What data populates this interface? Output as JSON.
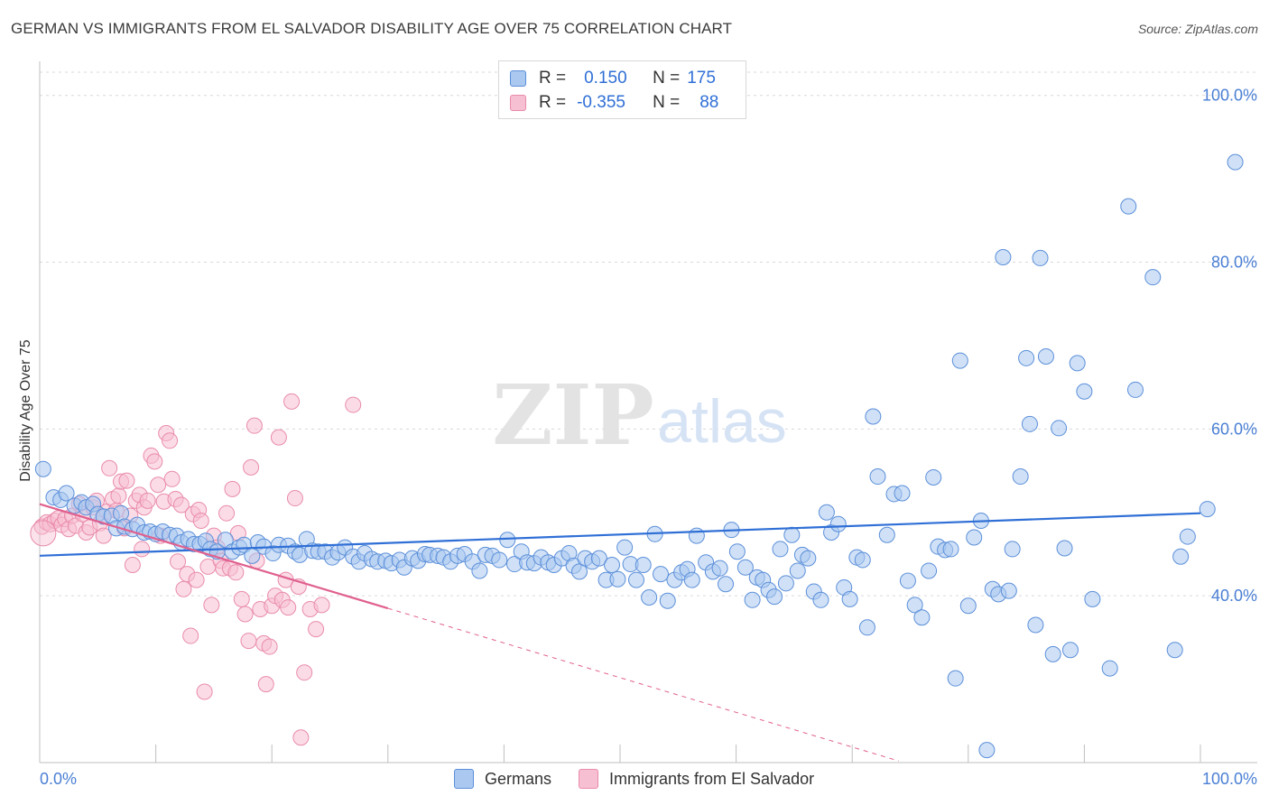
{
  "title": "GERMAN VS IMMIGRANTS FROM EL SALVADOR DISABILITY AGE OVER 75 CORRELATION CHART",
  "source": "Source: ZipAtlas.com",
  "watermark": {
    "zip": "ZIP",
    "atlas": "atlas"
  },
  "legend": {
    "rows": [
      {
        "r_label": "R =",
        "r_value": "0.150",
        "n_label": "N =",
        "n_value": "175"
      },
      {
        "r_label": "R =",
        "r_value": "-0.355",
        "n_label": "N =",
        "n_value": "88"
      }
    ]
  },
  "bottom_legend": {
    "germans": "Germans",
    "salvador": "Immigrants from El Salvador"
  },
  "colors": {
    "blue_fill": "#aac8f0",
    "blue_stroke": "#5b8fd9",
    "blue_line": "#2f6fd6",
    "pink_fill": "#f7bfd2",
    "pink_stroke": "#e98bab",
    "pink_line": "#e0608e",
    "grid": "#d9d9d9",
    "axis": "#bfbfbf"
  },
  "chart_data": {
    "type": "scatter",
    "title": "GERMAN VS IMMIGRANTS FROM EL SALVADOR DISABILITY AGE OVER 75 CORRELATION CHART",
    "xlabel": "",
    "ylabel": "Disability Age Over 75",
    "xlim": [
      0,
      100
    ],
    "ylim": [
      20,
      103
    ],
    "x_tick_labels": [
      "0.0%",
      "100.0%"
    ],
    "y_ticks": [
      {
        "value": 40,
        "label": "40.0%"
      },
      {
        "value": 60,
        "label": "60.0%"
      },
      {
        "value": 80,
        "label": "80.0%"
      },
      {
        "value": 100,
        "label": "100.0%"
      }
    ],
    "grid": true,
    "legend_position": "top-center",
    "series": [
      {
        "name": "Germans",
        "r": 0.15,
        "n": 175,
        "trend": {
          "x": [
            0,
            100
          ],
          "y": [
            44.8,
            49.9
          ]
        },
        "points": [
          [
            0.3,
            55.2
          ],
          [
            1.2,
            51.8
          ],
          [
            1.8,
            51.5
          ],
          [
            2.3,
            52.3
          ],
          [
            3.0,
            50.8
          ],
          [
            3.6,
            51.2
          ],
          [
            4.0,
            50.6
          ],
          [
            4.6,
            51.0
          ],
          [
            5.0,
            49.8
          ],
          [
            5.5,
            49.5
          ],
          [
            6.2,
            49.6
          ],
          [
            6.6,
            48.1
          ],
          [
            7.0,
            49.9
          ],
          [
            7.3,
            48.3
          ],
          [
            8.0,
            48.0
          ],
          [
            8.4,
            48.5
          ],
          [
            9.0,
            47.6
          ],
          [
            9.5,
            47.7
          ],
          [
            10.0,
            47.4
          ],
          [
            10.6,
            47.7
          ],
          [
            11.2,
            47.3
          ],
          [
            11.8,
            47.2
          ],
          [
            12.2,
            46.4
          ],
          [
            12.8,
            46.8
          ],
          [
            13.3,
            46.2
          ],
          [
            13.8,
            46.2
          ],
          [
            14.3,
            46.6
          ],
          [
            14.7,
            45.6
          ],
          [
            15.3,
            45.3
          ],
          [
            16.0,
            46.7
          ],
          [
            16.6,
            45.3
          ],
          [
            17.2,
            45.8
          ],
          [
            17.6,
            46.1
          ],
          [
            18.3,
            44.8
          ],
          [
            18.8,
            46.4
          ],
          [
            19.3,
            45.9
          ],
          [
            20.1,
            45.1
          ],
          [
            20.6,
            46.1
          ],
          [
            21.4,
            46.0
          ],
          [
            22.0,
            45.3
          ],
          [
            22.4,
            44.9
          ],
          [
            23.0,
            46.8
          ],
          [
            23.5,
            45.4
          ],
          [
            24.0,
            45.3
          ],
          [
            24.6,
            45.3
          ],
          [
            25.2,
            44.6
          ],
          [
            25.7,
            45.2
          ],
          [
            26.3,
            45.8
          ],
          [
            27.0,
            44.7
          ],
          [
            27.5,
            44.1
          ],
          [
            28.0,
            45.1
          ],
          [
            28.6,
            44.4
          ],
          [
            29.1,
            44.1
          ],
          [
            29.8,
            44.2
          ],
          [
            30.3,
            43.9
          ],
          [
            31.0,
            44.3
          ],
          [
            31.4,
            43.4
          ],
          [
            32.1,
            44.5
          ],
          [
            32.6,
            44.2
          ],
          [
            33.2,
            45.0
          ],
          [
            33.6,
            44.9
          ],
          [
            34.3,
            44.8
          ],
          [
            34.8,
            44.6
          ],
          [
            35.4,
            44.1
          ],
          [
            36.0,
            44.8
          ],
          [
            36.6,
            45.0
          ],
          [
            37.3,
            44.1
          ],
          [
            37.9,
            43.0
          ],
          [
            38.4,
            44.9
          ],
          [
            39.0,
            44.8
          ],
          [
            39.6,
            44.3
          ],
          [
            40.3,
            46.7
          ],
          [
            40.9,
            43.8
          ],
          [
            41.5,
            45.3
          ],
          [
            42.0,
            44.0
          ],
          [
            42.6,
            43.9
          ],
          [
            43.2,
            44.6
          ],
          [
            43.8,
            44.0
          ],
          [
            44.3,
            43.7
          ],
          [
            45.0,
            44.5
          ],
          [
            45.6,
            45.1
          ],
          [
            46.0,
            43.6
          ],
          [
            46.5,
            42.9
          ],
          [
            47.0,
            44.5
          ],
          [
            47.6,
            44.1
          ],
          [
            48.2,
            44.5
          ],
          [
            48.8,
            41.9
          ],
          [
            49.3,
            43.7
          ],
          [
            49.8,
            42.0
          ],
          [
            50.4,
            45.8
          ],
          [
            50.9,
            43.8
          ],
          [
            51.4,
            41.9
          ],
          [
            52.0,
            43.7
          ],
          [
            52.5,
            39.8
          ],
          [
            53.0,
            47.4
          ],
          [
            53.5,
            42.6
          ],
          [
            54.1,
            39.4
          ],
          [
            54.7,
            41.9
          ],
          [
            55.3,
            42.8
          ],
          [
            55.8,
            43.2
          ],
          [
            56.2,
            41.9
          ],
          [
            56.6,
            47.2
          ],
          [
            57.4,
            44.0
          ],
          [
            58.0,
            42.9
          ],
          [
            58.6,
            43.3
          ],
          [
            59.1,
            41.4
          ],
          [
            59.6,
            47.9
          ],
          [
            60.1,
            45.3
          ],
          [
            60.8,
            43.4
          ],
          [
            61.4,
            39.5
          ],
          [
            61.8,
            42.2
          ],
          [
            62.3,
            41.9
          ],
          [
            62.8,
            40.7
          ],
          [
            63.3,
            39.9
          ],
          [
            63.8,
            45.6
          ],
          [
            64.3,
            41.5
          ],
          [
            64.8,
            47.3
          ],
          [
            65.3,
            43.0
          ],
          [
            65.7,
            44.9
          ],
          [
            66.2,
            44.5
          ],
          [
            66.7,
            40.5
          ],
          [
            67.3,
            39.5
          ],
          [
            67.8,
            50.0
          ],
          [
            68.2,
            47.6
          ],
          [
            68.8,
            48.6
          ],
          [
            69.3,
            41.0
          ],
          [
            69.8,
            39.6
          ],
          [
            70.4,
            44.6
          ],
          [
            70.9,
            44.3
          ],
          [
            71.3,
            36.2
          ],
          [
            71.8,
            61.5
          ],
          [
            72.2,
            54.3
          ],
          [
            73.0,
            47.3
          ],
          [
            73.6,
            52.2
          ],
          [
            74.3,
            52.3
          ],
          [
            74.8,
            41.8
          ],
          [
            75.4,
            38.9
          ],
          [
            76.0,
            37.4
          ],
          [
            76.6,
            43.0
          ],
          [
            77.0,
            54.2
          ],
          [
            77.4,
            45.9
          ],
          [
            78.0,
            45.5
          ],
          [
            78.5,
            45.6
          ],
          [
            78.9,
            30.1
          ],
          [
            79.3,
            68.2
          ],
          [
            80.0,
            38.8
          ],
          [
            80.5,
            47.0
          ],
          [
            81.1,
            49.0
          ],
          [
            81.6,
            21.5
          ],
          [
            82.1,
            40.8
          ],
          [
            82.6,
            40.2
          ],
          [
            83.0,
            80.6
          ],
          [
            83.5,
            40.6
          ],
          [
            83.8,
            45.6
          ],
          [
            84.5,
            54.3
          ],
          [
            85.0,
            68.5
          ],
          [
            85.3,
            60.6
          ],
          [
            85.8,
            36.5
          ],
          [
            86.2,
            80.5
          ],
          [
            86.7,
            68.7
          ],
          [
            87.3,
            33.0
          ],
          [
            87.8,
            60.1
          ],
          [
            88.3,
            45.7
          ],
          [
            88.8,
            33.5
          ],
          [
            89.4,
            67.9
          ],
          [
            90.0,
            64.5
          ],
          [
            90.7,
            39.6
          ],
          [
            92.2,
            31.3
          ],
          [
            93.8,
            86.7
          ],
          [
            94.4,
            64.7
          ],
          [
            95.9,
            78.2
          ],
          [
            97.8,
            33.5
          ],
          [
            98.3,
            44.7
          ],
          [
            98.9,
            47.1
          ],
          [
            100.6,
            50.4
          ],
          [
            103.0,
            92.0
          ]
        ]
      },
      {
        "name": "Immigrants from El Salvador",
        "r": -0.355,
        "n": 88,
        "trend": {
          "x": [
            0,
            30
          ],
          "y": [
            51.0,
            38.5
          ]
        },
        "trend_dashed": {
          "x": [
            30,
            74
          ],
          "y": [
            38.5,
            20.2
          ]
        },
        "points": [
          [
            0.2,
            48.3
          ],
          [
            0.6,
            48.8
          ],
          [
            0.9,
            48.6
          ],
          [
            1.3,
            49.0
          ],
          [
            1.6,
            49.3
          ],
          [
            1.9,
            48.5
          ],
          [
            2.2,
            49.2
          ],
          [
            2.5,
            48.0
          ],
          [
            2.8,
            49.6
          ],
          [
            3.1,
            48.4
          ],
          [
            3.4,
            51.0
          ],
          [
            3.7,
            49.8
          ],
          [
            4.0,
            47.6
          ],
          [
            4.3,
            48.2
          ],
          [
            4.6,
            50.6
          ],
          [
            4.9,
            51.4
          ],
          [
            5.2,
            48.7
          ],
          [
            5.5,
            47.2
          ],
          [
            5.8,
            50.1
          ],
          [
            6.0,
            55.3
          ],
          [
            6.3,
            51.6
          ],
          [
            6.6,
            50.2
          ],
          [
            6.8,
            52.0
          ],
          [
            7.0,
            53.7
          ],
          [
            7.3,
            48.1
          ],
          [
            7.5,
            53.8
          ],
          [
            7.8,
            49.6
          ],
          [
            8.0,
            43.7
          ],
          [
            8.3,
            51.4
          ],
          [
            8.6,
            52.1
          ],
          [
            8.8,
            45.6
          ],
          [
            9.0,
            50.6
          ],
          [
            9.3,
            51.4
          ],
          [
            9.6,
            56.8
          ],
          [
            9.9,
            56.1
          ],
          [
            10.2,
            53.3
          ],
          [
            10.4,
            47.2
          ],
          [
            10.7,
            51.3
          ],
          [
            10.9,
            59.5
          ],
          [
            11.2,
            58.6
          ],
          [
            11.4,
            54.0
          ],
          [
            11.7,
            51.6
          ],
          [
            11.9,
            44.1
          ],
          [
            12.2,
            50.9
          ],
          [
            12.4,
            40.8
          ],
          [
            12.7,
            42.6
          ],
          [
            13.0,
            35.2
          ],
          [
            13.2,
            49.8
          ],
          [
            13.5,
            41.9
          ],
          [
            13.7,
            50.3
          ],
          [
            13.9,
            49.0
          ],
          [
            14.2,
            28.5
          ],
          [
            14.5,
            43.5
          ],
          [
            14.8,
            38.9
          ],
          [
            15.0,
            47.2
          ],
          [
            15.3,
            45.8
          ],
          [
            15.6,
            44.2
          ],
          [
            15.8,
            43.3
          ],
          [
            16.1,
            49.9
          ],
          [
            16.4,
            43.3
          ],
          [
            16.6,
            52.8
          ],
          [
            16.9,
            42.8
          ],
          [
            17.1,
            47.5
          ],
          [
            17.4,
            39.6
          ],
          [
            17.7,
            37.8
          ],
          [
            18.0,
            34.6
          ],
          [
            18.2,
            55.4
          ],
          [
            18.5,
            60.4
          ],
          [
            18.7,
            44.2
          ],
          [
            19.0,
            38.4
          ],
          [
            19.3,
            34.3
          ],
          [
            19.5,
            29.4
          ],
          [
            19.8,
            33.9
          ],
          [
            20.0,
            38.8
          ],
          [
            20.3,
            40.0
          ],
          [
            20.6,
            59.0
          ],
          [
            20.9,
            39.5
          ],
          [
            21.2,
            41.9
          ],
          [
            21.4,
            38.6
          ],
          [
            21.7,
            63.3
          ],
          [
            22.0,
            51.7
          ],
          [
            22.3,
            41.1
          ],
          [
            22.5,
            23.0
          ],
          [
            22.8,
            30.8
          ],
          [
            23.3,
            38.4
          ],
          [
            23.8,
            36.0
          ],
          [
            24.3,
            38.9
          ],
          [
            27.0,
            62.9
          ]
        ]
      }
    ]
  }
}
